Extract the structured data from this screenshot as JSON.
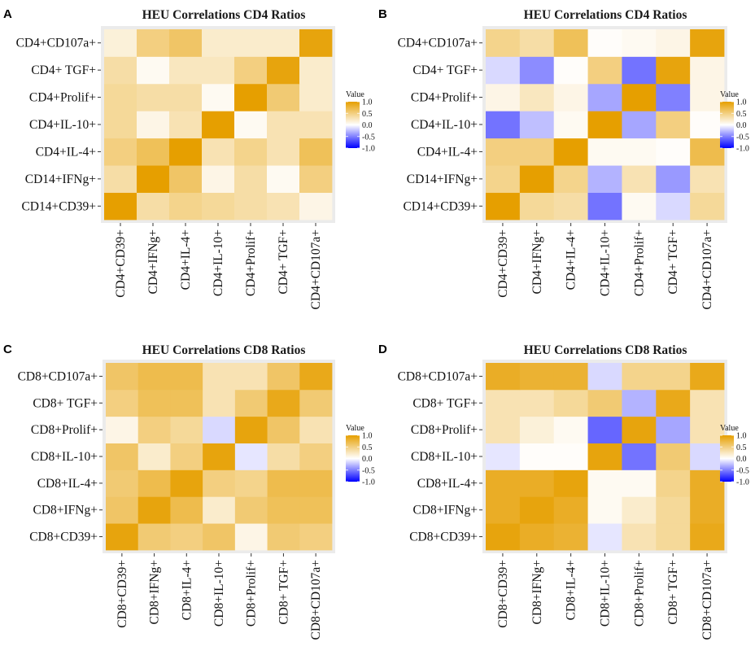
{
  "colors": {
    "low": "#0000ff",
    "mid": "#ffffff",
    "high": "#e69f00",
    "panel_bg": "#ebebeb"
  },
  "chart_data": [
    {
      "type": "heatmap",
      "panel": "A",
      "title": "HEU Correlations CD4 Ratios",
      "x_categories": [
        "CD4+CD39+",
        "CD4+IFNg+",
        "CD4+IL-4+",
        "CD4+IL-10+",
        "CD4+Prolif+",
        "CD4+ TGF+",
        "CD4+CD107a+"
      ],
      "y_categories": [
        "CD14+CD39+",
        "CD14+IFNg+",
        "CD4+IL-4+",
        "CD4+IL-10+",
        "CD4+Prolif+",
        "CD4+ TGF+",
        "CD4+CD107a+"
      ],
      "values": [
        [
          1.0,
          0.35,
          0.45,
          0.4,
          0.35,
          0.3,
          0.1
        ],
        [
          0.35,
          1.0,
          0.6,
          0.1,
          0.35,
          0.05,
          0.5
        ],
        [
          0.5,
          0.65,
          1.0,
          0.3,
          0.45,
          0.3,
          0.65
        ],
        [
          0.4,
          0.1,
          0.3,
          1.0,
          0.05,
          0.3,
          0.3
        ],
        [
          0.4,
          0.35,
          0.35,
          0.05,
          1.0,
          0.55,
          0.2
        ],
        [
          0.35,
          0.05,
          0.25,
          0.25,
          0.5,
          0.95,
          0.2
        ],
        [
          0.15,
          0.5,
          0.6,
          0.2,
          0.2,
          0.2,
          0.95
        ]
      ],
      "legend": {
        "title": "Value",
        "ticks": [
          "1.0",
          "0.5",
          "0.0",
          "-0.5",
          "-1.0"
        ],
        "tick_values": [
          1.0,
          0.5,
          0.0,
          -0.5,
          -1.0
        ],
        "range": [
          -1,
          1
        ]
      }
    },
    {
      "type": "heatmap",
      "panel": "B",
      "title": "HEU Correlations CD4 Ratios",
      "x_categories": [
        "CD4+CD39+",
        "CD4+IFNg+",
        "CD4+IL-4+",
        "CD4+IL-10+",
        "CD4+Prolif+",
        "CD4+ TGF+",
        "CD4+CD107a+"
      ],
      "y_categories": [
        "CD14+CD39+",
        "CD14+IFNg+",
        "CD4+IL-4+",
        "CD4+IL-10+",
        "CD4+Prolif+",
        "CD4+ TGF+",
        "CD4+CD107a+"
      ],
      "values": [
        [
          1.0,
          0.4,
          0.35,
          -0.55,
          0.05,
          -0.15,
          0.4
        ],
        [
          0.45,
          1.0,
          0.45,
          -0.3,
          0.3,
          -0.4,
          0.3
        ],
        [
          0.5,
          0.5,
          1.0,
          0.05,
          0.05,
          0.02,
          0.7
        ],
        [
          -0.55,
          -0.25,
          0.05,
          1.0,
          -0.35,
          0.5,
          0.02
        ],
        [
          0.1,
          0.25,
          0.1,
          -0.35,
          1.0,
          -0.5,
          0.1
        ],
        [
          -0.15,
          -0.45,
          0.02,
          0.5,
          -0.55,
          0.95,
          0.1
        ],
        [
          0.45,
          0.35,
          0.65,
          0.02,
          0.05,
          0.1,
          0.95
        ]
      ],
      "legend": {
        "title": "Value",
        "ticks": [
          "1.0",
          "0.5",
          "0.0",
          "-0.5",
          "-1.0"
        ],
        "tick_values": [
          1.0,
          0.5,
          0.0,
          -0.5,
          -1.0
        ],
        "range": [
          -1,
          1
        ]
      }
    },
    {
      "type": "heatmap",
      "panel": "C",
      "title": "HEU Correlations CD8 Ratios",
      "x_categories": [
        "CD8+CD39+",
        "CD8+IFNg+",
        "CD8+IL-4+",
        "CD8+IL-10+",
        "CD8+Prolif+",
        "CD8+ TGF+",
        "CD8+CD107a+"
      ],
      "y_categories": [
        "CD8+CD39+",
        "CD8+IFNg+",
        "CD8+IL-4+",
        "CD8+IL-10+",
        "CD8+Prolif+",
        "CD8+ TGF+",
        "CD8+CD107a+"
      ],
      "values": [
        [
          0.95,
          0.55,
          0.5,
          0.6,
          0.1,
          0.55,
          0.5
        ],
        [
          0.6,
          0.95,
          0.7,
          0.2,
          0.55,
          0.65,
          0.65
        ],
        [
          0.55,
          0.7,
          0.95,
          0.5,
          0.45,
          0.7,
          0.7
        ],
        [
          0.6,
          0.2,
          0.5,
          0.95,
          -0.1,
          0.35,
          0.5
        ],
        [
          0.1,
          0.5,
          0.4,
          -0.15,
          0.95,
          0.6,
          0.3
        ],
        [
          0.5,
          0.65,
          0.65,
          0.3,
          0.55,
          0.9,
          0.55
        ],
        [
          0.6,
          0.7,
          0.7,
          0.3,
          0.3,
          0.6,
          0.9
        ]
      ],
      "legend": {
        "title": "Value",
        "ticks": [
          "1.0",
          "0.5",
          "0.0",
          "-0.5",
          "-1.0"
        ],
        "tick_values": [
          1.0,
          0.5,
          0.0,
          -0.5,
          -1.0
        ],
        "range": [
          -1,
          1
        ]
      }
    },
    {
      "type": "heatmap",
      "panel": "D",
      "title": "HEU Correlations CD8 Ratios",
      "x_categories": [
        "CD8+CD39+",
        "CD8+IFNg+",
        "CD8+IL-4+",
        "CD8+IL-10+",
        "CD8+Prolif+",
        "CD8+ TGF+",
        "CD8+CD107a+"
      ],
      "y_categories": [
        "CD8+CD39+",
        "CD8+IFNg+",
        "CD8+IL-4+",
        "CD8+IL-10+",
        "CD8+Prolif+",
        "CD8+ TGF+",
        "CD8+CD107a+"
      ],
      "values": [
        [
          0.95,
          0.85,
          0.8,
          -0.1,
          0.3,
          0.4,
          0.9
        ],
        [
          0.85,
          0.95,
          0.85,
          0.05,
          0.2,
          0.4,
          0.85
        ],
        [
          0.85,
          0.85,
          0.95,
          0.05,
          0.05,
          0.45,
          0.85
        ],
        [
          -0.1,
          0.02,
          0.02,
          0.95,
          -0.55,
          0.55,
          -0.15
        ],
        [
          0.3,
          0.15,
          0.05,
          -0.6,
          0.95,
          -0.35,
          0.3
        ],
        [
          0.3,
          0.3,
          0.4,
          0.55,
          -0.3,
          0.9,
          0.3
        ],
        [
          0.85,
          0.8,
          0.8,
          -0.15,
          0.45,
          0.45,
          0.9
        ]
      ],
      "legend": {
        "title": "Value",
        "ticks": [
          "1.0",
          "0.5",
          "0.0",
          "-0.5",
          "-1.0"
        ],
        "tick_values": [
          1.0,
          0.5,
          0.0,
          -0.5,
          -1.0
        ],
        "range": [
          -1,
          1
        ]
      }
    }
  ]
}
